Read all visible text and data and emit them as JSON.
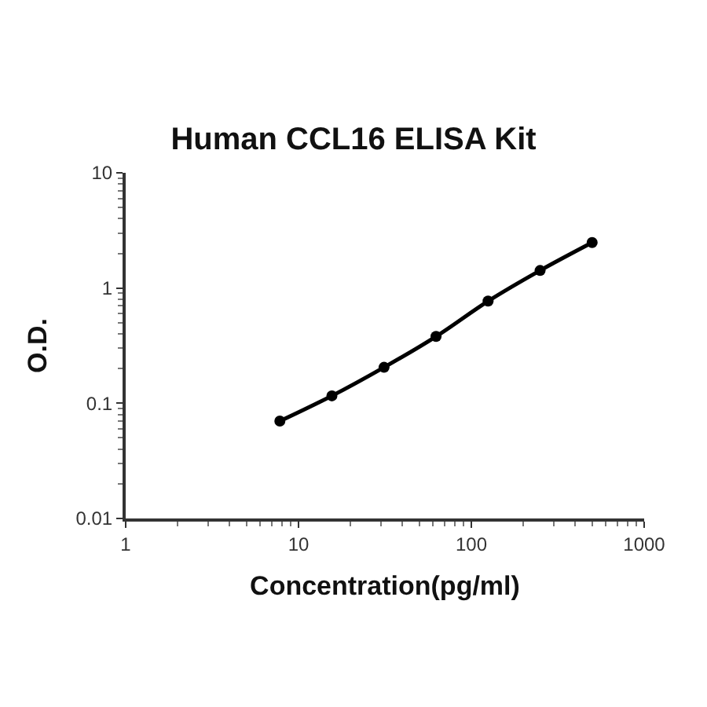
{
  "chart_data": {
    "type": "line",
    "title": "Human CCL16 ELISA Kit",
    "xlabel": "Concentration(pg/ml)",
    "ylabel": "O.D.",
    "x": [
      7.8,
      15.6,
      31.25,
      62.5,
      125,
      250,
      500
    ],
    "series": [
      {
        "color": "#000000",
        "values": [
          0.07,
          0.116,
          0.205,
          0.38,
          0.77,
          1.42,
          2.48
        ]
      }
    ],
    "log": "xy",
    "xlim": [
      1,
      1000
    ],
    "ylim": [
      0.01,
      10
    ],
    "xticks": [
      1,
      10,
      100,
      1000
    ],
    "yticks": [
      0.01,
      0.1,
      1,
      10
    ],
    "marker": "circle",
    "line_style": "solid",
    "legend": false
  }
}
